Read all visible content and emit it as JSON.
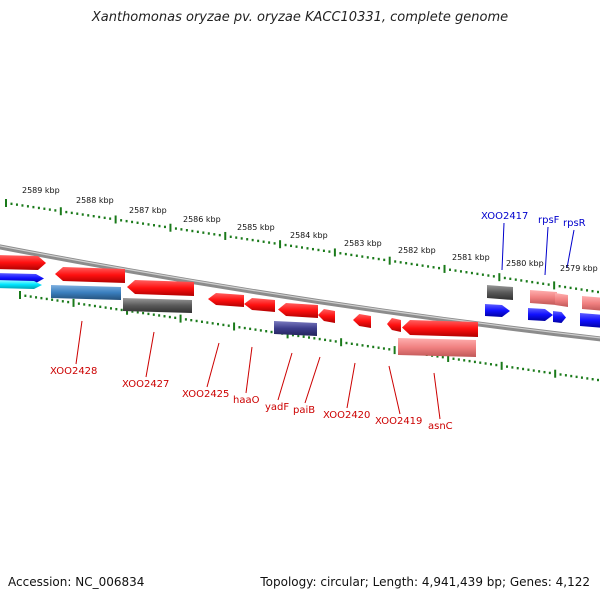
{
  "title": "Xanthomonas oryzae pv. oryzae KACC10331, complete genome",
  "footer": {
    "accession": "Accession: NC_006834",
    "summary": "Topology: circular; Length: 4,941,439 bp; Genes: 4,122"
  },
  "colors": {
    "backbone": "#8c8c8c",
    "tick": "#1a7a1a",
    "gene_red": "#ff1a1a",
    "gene_pink": "#f08080",
    "gene_blue": "#1414ff",
    "gene_cyan": "#00e5ff",
    "gene_steel": "#3a7fbf",
    "gene_gray": "#5a5a5a",
    "gene_purple": "#3c3c8a",
    "label_red": "#cc0000",
    "label_blue": "#0000cc"
  },
  "scale_labels": [
    "2589 kbp",
    "2588 kbp",
    "2587 kbp",
    "2586 kbp",
    "2585 kbp",
    "2584 kbp",
    "2583 kbp",
    "2582 kbp",
    "2581 kbp",
    "2580 kbp",
    "2579 kbp"
  ],
  "gene_labels": [
    {
      "text": "XOO2428",
      "color": "red"
    },
    {
      "text": "XOO2427",
      "color": "red"
    },
    {
      "text": "XOO2425",
      "color": "red"
    },
    {
      "text": "haaO",
      "color": "red"
    },
    {
      "text": "yadF",
      "color": "red"
    },
    {
      "text": "paiB",
      "color": "red"
    },
    {
      "text": "XOO2420",
      "color": "red"
    },
    {
      "text": "XOO2419",
      "color": "red"
    },
    {
      "text": "asnC",
      "color": "red"
    },
    {
      "text": "XOO2417",
      "color": "blue"
    },
    {
      "text": "rpsF",
      "color": "blue"
    },
    {
      "text": "rpsR",
      "color": "blue"
    }
  ]
}
